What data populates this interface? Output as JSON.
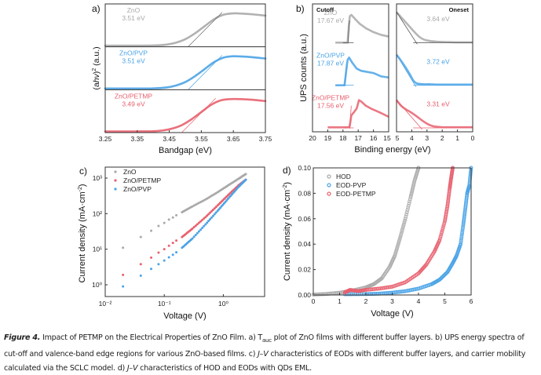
{
  "colors": {
    "zno": "#a9a9a9",
    "pvp": "#4aa3e6",
    "petmp": "#e8606e",
    "axis": "#333333",
    "fit": "#555555"
  },
  "chart_data": [
    {
      "panel": "a)",
      "type": "line",
      "title": "",
      "xlabel": "Bandgap (eV)",
      "ylabel": "(ahv)^2 (a.u.)",
      "xlim": [
        3.25,
        3.75
      ],
      "x_ticks": [
        "3.25",
        "3.35",
        "3.45",
        "3.55",
        "3.65",
        "3.75"
      ],
      "stacked_subpanels": true,
      "series": [
        {
          "name": "ZnO",
          "annotation": "3.51 eV",
          "bandgap_eV": 3.51,
          "color_key": "zno",
          "x": [
            3.25,
            3.3,
            3.35,
            3.4,
            3.44,
            3.47,
            3.5,
            3.53,
            3.56,
            3.59,
            3.62,
            3.65,
            3.68,
            3.71,
            3.75
          ],
          "y": [
            0,
            0,
            0,
            0.005,
            0.03,
            0.09,
            0.2,
            0.38,
            0.6,
            0.82,
            0.96,
            1.0,
            0.99,
            0.97,
            0.93
          ]
        },
        {
          "name": "ZnO/PVP",
          "annotation": "3.51 eV",
          "bandgap_eV": 3.51,
          "color_key": "pvp",
          "x": [
            3.25,
            3.3,
            3.35,
            3.4,
            3.44,
            3.47,
            3.5,
            3.53,
            3.56,
            3.59,
            3.62,
            3.65,
            3.68,
            3.71,
            3.75
          ],
          "y": [
            0,
            0,
            0,
            0.005,
            0.03,
            0.09,
            0.2,
            0.38,
            0.6,
            0.82,
            0.96,
            1.0,
            0.99,
            0.97,
            0.93
          ]
        },
        {
          "name": "ZnO/PETMP",
          "annotation": "3.49 eV",
          "bandgap_eV": 3.49,
          "color_key": "petmp",
          "x": [
            3.25,
            3.3,
            3.35,
            3.4,
            3.43,
            3.46,
            3.49,
            3.52,
            3.55,
            3.58,
            3.61,
            3.64,
            3.67,
            3.71,
            3.75
          ],
          "y": [
            0,
            0,
            0,
            0.005,
            0.03,
            0.09,
            0.2,
            0.38,
            0.6,
            0.82,
            0.96,
            1.0,
            1.0,
            0.98,
            0.94
          ]
        }
      ]
    },
    {
      "panel": "b)",
      "type": "line",
      "ylabel": "UPS counts (a.u.)",
      "xlabel": "Binding energy (eV)",
      "subplots": [
        {
          "label": "Cutoff",
          "xlim": [
            20,
            15
          ],
          "x_ticks": [
            "20",
            "19",
            "18",
            "17",
            "16",
            "15"
          ]
        },
        {
          "label": "Oneset",
          "xlim": [
            5,
            0
          ],
          "x_ticks": [
            "5",
            "4",
            "3",
            "2",
            "1",
            "0"
          ]
        }
      ],
      "series": [
        {
          "name": "ZnO",
          "cutoff_eV": 17.67,
          "cutoff_label": "17.67 eV",
          "onset_label": "3.64 eV",
          "onset_eV": 3.64,
          "color_key": "zno",
          "cutoff_x": [
            18.5,
            18.0,
            17.7,
            17.62,
            17.55,
            17.45,
            17.2,
            16.9,
            16.5,
            16.0,
            15.5,
            15.0
          ],
          "cutoff_y": [
            0,
            0,
            0,
            0.6,
            0.95,
            1.0,
            0.85,
            0.68,
            0.52,
            0.38,
            0.28,
            0.22
          ],
          "onset_x": [
            5.0,
            4.7,
            4.4,
            4.1,
            3.8,
            3.5,
            3.2,
            2.8,
            2.4,
            2.0,
            1.5,
            1.0,
            0.5,
            0.0
          ],
          "onset_y": [
            0.9,
            0.75,
            0.6,
            0.45,
            0.3,
            0.17,
            0.09,
            0.05,
            0.03,
            0.02,
            0.015,
            0.01,
            0.01,
            0.01
          ]
        },
        {
          "name": "ZnO/PVP",
          "cutoff_eV": 17.87,
          "cutoff_label": "17.87 eV",
          "onset_label": "3.72 eV",
          "onset_eV": 3.72,
          "color_key": "pvp",
          "cutoff_x": [
            18.5,
            18.0,
            17.9,
            17.78,
            17.7,
            17.6,
            17.4,
            17.1,
            16.8,
            16.4,
            16.0,
            15.5,
            15.0
          ],
          "cutoff_y": [
            0,
            0,
            0,
            0.55,
            0.9,
            1.0,
            0.82,
            0.6,
            0.52,
            0.48,
            0.44,
            0.32,
            0.28
          ],
          "onset_x": [
            5.0,
            4.7,
            4.4,
            4.1,
            3.9,
            3.7,
            3.5,
            3.2,
            2.8,
            2.4,
            2.0,
            1.5,
            1.0,
            0.5,
            0.0
          ],
          "onset_y": [
            0.9,
            0.72,
            0.52,
            0.3,
            0.14,
            0.06,
            0.04,
            0.03,
            0.03,
            0.02,
            0.02,
            0.02,
            0.02,
            0.02,
            0.02
          ]
        },
        {
          "name": "ZnO/PETMP",
          "cutoff_eV": 17.56,
          "cutoff_label": "17.56 eV",
          "onset_label": "3.31 eV",
          "onset_eV": 3.31,
          "color_key": "petmp",
          "cutoff_x": [
            19.0,
            18.5,
            18.0,
            17.7,
            17.56,
            17.45,
            17.3,
            17.1,
            16.95,
            16.8,
            16.5,
            16.1,
            15.6,
            15.0
          ],
          "cutoff_y": [
            0.02,
            0.02,
            0.02,
            0.02,
            0.05,
            0.45,
            0.55,
            0.7,
            1.0,
            0.95,
            0.8,
            0.68,
            0.56,
            0.4
          ],
          "onset_x": [
            5.0,
            4.7,
            4.4,
            4.1,
            3.8,
            3.5,
            3.2,
            2.9,
            2.6,
            2.3,
            2.0,
            1.5,
            1.0,
            0.5,
            0.0
          ],
          "onset_y": [
            0.82,
            0.65,
            0.55,
            0.47,
            0.38,
            0.28,
            0.18,
            0.1,
            0.05,
            0.03,
            0.02,
            0.02,
            0.02,
            0.02,
            0.02
          ]
        }
      ]
    },
    {
      "panel": "c)",
      "type": "scatter",
      "xscale": "log",
      "yscale": "log",
      "xlabel": "Voltage (V)",
      "ylabel": "Current density (mA·cm⁻²)",
      "xlim": [
        0.01,
        5
      ],
      "ylim": [
        0.5,
        2000
      ],
      "x_ticks": [
        {
          "v": 0.01,
          "label": "10⁻²"
        },
        {
          "v": 0.1,
          "label": "10⁻¹"
        },
        {
          "v": 1,
          "label": "10⁰"
        }
      ],
      "y_ticks": [
        {
          "v": 1,
          "label": "10⁰"
        },
        {
          "v": 10,
          "label": "10¹"
        },
        {
          "v": 100,
          "label": "10²"
        },
        {
          "v": 1000,
          "label": "10³"
        }
      ],
      "legend": "top-left",
      "series": [
        {
          "name": "ZnO",
          "color_key": "zno",
          "x": [
            0.02,
            0.04,
            0.06,
            0.08,
            0.1,
            0.12,
            0.14,
            0.16,
            0.2,
            0.3,
            0.5,
            0.8,
            1.2,
            1.8,
            2.4
          ],
          "y": [
            11,
            22,
            33,
            45,
            55,
            68,
            78,
            90,
            110,
            160,
            250,
            400,
            620,
            950,
            1300
          ]
        },
        {
          "name": "ZnO/PETMP",
          "color_key": "petmp",
          "x": [
            0.02,
            0.04,
            0.06,
            0.08,
            0.1,
            0.12,
            0.14,
            0.16,
            0.2,
            0.3,
            0.5,
            0.8,
            1.2,
            1.8,
            2.4
          ],
          "y": [
            1.9,
            3.8,
            5.8,
            8,
            10,
            12.5,
            15,
            17.5,
            22,
            38,
            80,
            170,
            330,
            620,
            900
          ]
        },
        {
          "name": "ZnO/PVP",
          "color_key": "pvp",
          "x": [
            0.02,
            0.04,
            0.06,
            0.08,
            0.1,
            0.12,
            0.14,
            0.16,
            0.2,
            0.3,
            0.5,
            0.8,
            1.2,
            1.8,
            2.4
          ],
          "y": [
            0.9,
            1.8,
            2.8,
            3.8,
            4.8,
            5.9,
            7,
            8.2,
            11,
            20,
            50,
            120,
            260,
            560,
            900
          ]
        }
      ]
    },
    {
      "panel": "d)",
      "type": "scatter",
      "xlabel": "Voltage (V)",
      "ylabel": "Current density (mA·cm⁻²)",
      "xlim": [
        0,
        6
      ],
      "ylim": [
        0,
        0.1
      ],
      "x_ticks": [
        "0",
        "1",
        "2",
        "3",
        "4",
        "5",
        "6"
      ],
      "y_ticks": [
        "0.00",
        "0.02",
        "0.04",
        "0.06",
        "0.08",
        "0.10"
      ],
      "legend": "top-left",
      "series": [
        {
          "name": "HOD",
          "color_key": "zno",
          "x": [
            0,
            0.5,
            1,
            1.5,
            2,
            2.3,
            2.6,
            2.9,
            3.1,
            3.3,
            3.5,
            3.7,
            3.85,
            4.0
          ],
          "y": [
            0.0003,
            0.0008,
            0.0018,
            0.0035,
            0.006,
            0.0085,
            0.013,
            0.022,
            0.031,
            0.045,
            0.06,
            0.077,
            0.09,
            0.1
          ]
        },
        {
          "name": "EOD-PVP",
          "color_key": "pvp",
          "x": [
            1.2,
            2,
            2.5,
            3,
            3.5,
            4,
            4.5,
            4.8,
            5.1,
            5.3,
            5.45,
            5.6,
            5.7,
            5.78,
            5.85,
            5.93,
            6.0
          ],
          "y": [
            0.0005,
            0.0007,
            0.001,
            0.0018,
            0.003,
            0.005,
            0.0085,
            0.012,
            0.018,
            0.025,
            0.031,
            0.04,
            0.055,
            0.068,
            0.08,
            0.086,
            0.1
          ]
        },
        {
          "name": "EOD-PETMP",
          "color_key": "petmp",
          "x": [
            1.2,
            1.4,
            1.7,
            2,
            2.5,
            3,
            3.5,
            4,
            4.3,
            4.6,
            4.8,
            5,
            5.1,
            5.18,
            5.24,
            5.3
          ],
          "y": [
            0.002,
            0.004,
            0.003,
            0.004,
            0.005,
            0.0065,
            0.01,
            0.017,
            0.024,
            0.034,
            0.043,
            0.058,
            0.07,
            0.083,
            0.092,
            0.1
          ]
        }
      ]
    }
  ],
  "panel_labels": {
    "a": "a)",
    "b": "b)",
    "c": "c)",
    "d": "d)"
  },
  "caption": {
    "figure_label": "Figure 4.",
    "line1_main": " Impact of PETMP on the Electrical Properties of ZnO Film. a) T",
    "line1_sub": "auc",
    "line1_rest": " plot of ZnO films with different buffer layers. b) UPS energy spectra of",
    "line2_a": "cut-off and valence-band edge regions for various ZnO-based films. c) ",
    "line2_jv": "J–V",
    "line2_b": " characteristics of EODs with different buffer layers, and carrier mobility",
    "line3_a": "calculated via the SCLC model. d) ",
    "line3_jv": "J–V",
    "line3_b": " characteristics of HOD and EODs with QDs EML."
  }
}
